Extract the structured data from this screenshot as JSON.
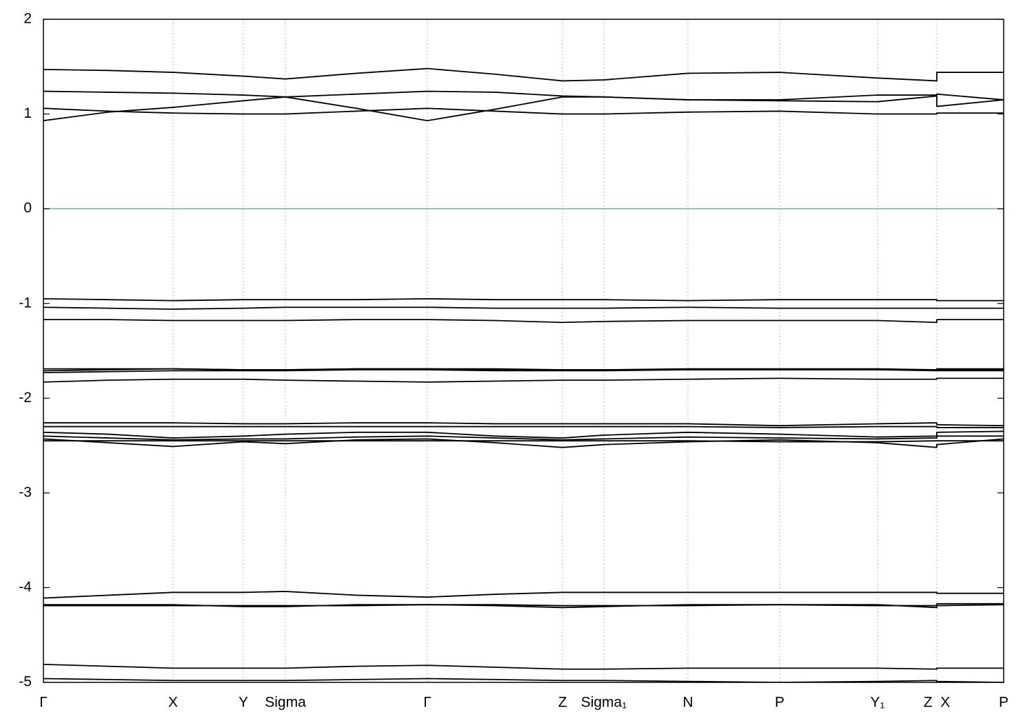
{
  "chart_data": {
    "type": "line",
    "x": [
      0,
      0.094,
      0.188,
      0.29,
      0.351,
      0.454,
      0.557,
      0.655,
      0.753,
      0.813,
      0.935,
      1.068,
      1.21,
      1.296,
      1.296,
      1.393
    ],
    "xlim": [
      0,
      1.393
    ],
    "xticks": [
      {
        "value": 0,
        "label": "Γ"
      },
      {
        "value": 0.188,
        "label": "X"
      },
      {
        "value": 0.29,
        "label": "Y"
      },
      {
        "value": 0.351,
        "label": "Sigma"
      },
      {
        "value": 0.557,
        "label": "Γ"
      },
      {
        "value": 0.753,
        "label": "Z"
      },
      {
        "value": 0.813,
        "label": "Sigma₁"
      },
      {
        "value": 0.935,
        "label": "N"
      },
      {
        "value": 1.068,
        "label": "P"
      },
      {
        "value": 1.21,
        "label": "Y₁"
      },
      {
        "value": 1.296,
        "label": "Z  X"
      },
      {
        "value": 1.393,
        "label": "P"
      }
    ],
    "ylim": [
      -5,
      2
    ],
    "yticks": [
      -5,
      -4,
      -3,
      -2,
      -1,
      0,
      1,
      2
    ],
    "xgrid": true,
    "reference_line": {
      "value": 0,
      "color": "#5ab4c8"
    },
    "series": [
      {
        "color": "#000000",
        "values": [
          1.47,
          1.46,
          1.44,
          1.4,
          1.37,
          1.43,
          1.48,
          1.42,
          1.35,
          1.36,
          1.43,
          1.44,
          1.38,
          1.35,
          1.44,
          1.44
        ]
      },
      {
        "color": "#000000",
        "values": [
          1.24,
          1.23,
          1.22,
          1.2,
          1.18,
          1.21,
          1.24,
          1.23,
          1.19,
          1.18,
          1.15,
          1.14,
          1.13,
          1.19,
          1.21,
          1.15
        ]
      },
      {
        "color": "#000000",
        "values": [
          0.93,
          1.02,
          1.07,
          1.14,
          1.18,
          1.06,
          0.93,
          1.05,
          1.18,
          1.18,
          1.15,
          1.15,
          1.2,
          1.2,
          1.08,
          1.15
        ]
      },
      {
        "color": "#000000",
        "values": [
          1.06,
          1.03,
          1.01,
          1.0,
          1.0,
          1.03,
          1.06,
          1.03,
          1.0,
          1.0,
          1.02,
          1.03,
          1.0,
          1.0,
          1.01,
          1.01
        ]
      },
      {
        "color": "#000000",
        "values": [
          -0.95,
          -0.96,
          -0.97,
          -0.96,
          -0.96,
          -0.96,
          -0.95,
          -0.96,
          -0.96,
          -0.96,
          -0.97,
          -0.96,
          -0.96,
          -0.96,
          -0.97,
          -0.97
        ]
      },
      {
        "color": "#000000",
        "values": [
          -1.04,
          -1.05,
          -1.06,
          -1.05,
          -1.04,
          -1.04,
          -1.04,
          -1.05,
          -1.05,
          -1.05,
          -1.04,
          -1.05,
          -1.05,
          -1.05,
          -1.05,
          -1.05
        ]
      },
      {
        "color": "#000000",
        "values": [
          -1.17,
          -1.17,
          -1.18,
          -1.18,
          -1.18,
          -1.17,
          -1.17,
          -1.18,
          -1.2,
          -1.19,
          -1.18,
          -1.18,
          -1.18,
          -1.2,
          -1.17,
          -1.17
        ]
      },
      {
        "color": "#000000",
        "values": [
          -1.69,
          -1.69,
          -1.69,
          -1.7,
          -1.7,
          -1.69,
          -1.69,
          -1.69,
          -1.7,
          -1.7,
          -1.69,
          -1.69,
          -1.69,
          -1.7,
          -1.69,
          -1.69
        ]
      },
      {
        "color": "#000000",
        "values": [
          -1.71,
          -1.7,
          -1.69,
          -1.7,
          -1.7,
          -1.69,
          -1.69,
          -1.7,
          -1.7,
          -1.7,
          -1.7,
          -1.7,
          -1.7,
          -1.7,
          -1.7,
          -1.7
        ]
      },
      {
        "color": "#000000",
        "values": [
          -1.73,
          -1.72,
          -1.71,
          -1.71,
          -1.71,
          -1.7,
          -1.7,
          -1.71,
          -1.71,
          -1.71,
          -1.7,
          -1.7,
          -1.7,
          -1.71,
          -1.71,
          -1.71
        ]
      },
      {
        "color": "#000000",
        "values": [
          -1.83,
          -1.81,
          -1.8,
          -1.8,
          -1.81,
          -1.82,
          -1.83,
          -1.82,
          -1.81,
          -1.81,
          -1.8,
          -1.79,
          -1.8,
          -1.8,
          -1.79,
          -1.79
        ]
      },
      {
        "color": "#000000",
        "values": [
          -2.26,
          -2.26,
          -2.26,
          -2.27,
          -2.27,
          -2.26,
          -2.26,
          -2.27,
          -2.27,
          -2.27,
          -2.27,
          -2.29,
          -2.27,
          -2.26,
          -2.28,
          -2.29
        ]
      },
      {
        "color": "#000000",
        "values": [
          -2.3,
          -2.3,
          -2.3,
          -2.3,
          -2.3,
          -2.3,
          -2.3,
          -2.3,
          -2.3,
          -2.3,
          -2.3,
          -2.31,
          -2.3,
          -2.3,
          -2.31,
          -2.31
        ]
      },
      {
        "color": "#000000",
        "values": [
          -2.36,
          -2.38,
          -2.42,
          -2.4,
          -2.38,
          -2.36,
          -2.36,
          -2.4,
          -2.42,
          -2.39,
          -2.36,
          -2.38,
          -2.41,
          -2.4,
          -2.36,
          -2.35
        ]
      },
      {
        "color": "#000000",
        "values": [
          -2.4,
          -2.42,
          -2.44,
          -2.43,
          -2.43,
          -2.41,
          -2.4,
          -2.42,
          -2.44,
          -2.43,
          -2.41,
          -2.42,
          -2.43,
          -2.42,
          -2.4,
          -2.4
        ]
      },
      {
        "color": "#000000",
        "values": [
          -2.43,
          -2.47,
          -2.51,
          -2.46,
          -2.48,
          -2.44,
          -2.43,
          -2.47,
          -2.52,
          -2.49,
          -2.46,
          -2.44,
          -2.47,
          -2.52,
          -2.49,
          -2.43
        ]
      },
      {
        "color": "#000000",
        "values": [
          -2.45,
          -2.45,
          -2.45,
          -2.45,
          -2.45,
          -2.45,
          -2.45,
          -2.45,
          -2.45,
          -2.45,
          -2.45,
          -2.46,
          -2.46,
          -2.45,
          -2.45,
          -2.45
        ]
      },
      {
        "color": "#000000",
        "values": [
          -4.11,
          -4.08,
          -4.05,
          -4.05,
          -4.04,
          -4.08,
          -4.1,
          -4.07,
          -4.05,
          -4.05,
          -4.05,
          -4.05,
          -4.05,
          -4.05,
          -4.06,
          -4.06
        ]
      },
      {
        "color": "#000000",
        "values": [
          -4.18,
          -4.18,
          -4.18,
          -4.2,
          -4.2,
          -4.18,
          -4.18,
          -4.19,
          -4.21,
          -4.2,
          -4.18,
          -4.18,
          -4.18,
          -4.21,
          -4.17,
          -4.17
        ]
      },
      {
        "color": "#000000",
        "values": [
          -4.19,
          -4.19,
          -4.19,
          -4.19,
          -4.19,
          -4.19,
          -4.18,
          -4.18,
          -4.19,
          -4.19,
          -4.19,
          -4.18,
          -4.19,
          -4.19,
          -4.19,
          -4.18
        ]
      },
      {
        "color": "#000000",
        "values": [
          -4.81,
          -4.83,
          -4.85,
          -4.85,
          -4.85,
          -4.83,
          -4.82,
          -4.84,
          -4.86,
          -4.86,
          -4.85,
          -4.85,
          -4.85,
          -4.86,
          -4.85,
          -4.85
        ]
      },
      {
        "color": "#000000",
        "values": [
          -4.96,
          -4.97,
          -4.98,
          -4.98,
          -4.98,
          -4.97,
          -4.96,
          -4.97,
          -4.98,
          -4.98,
          -4.99,
          -5.0,
          -4.99,
          -4.98,
          -4.99,
          -5.0
        ]
      }
    ]
  }
}
